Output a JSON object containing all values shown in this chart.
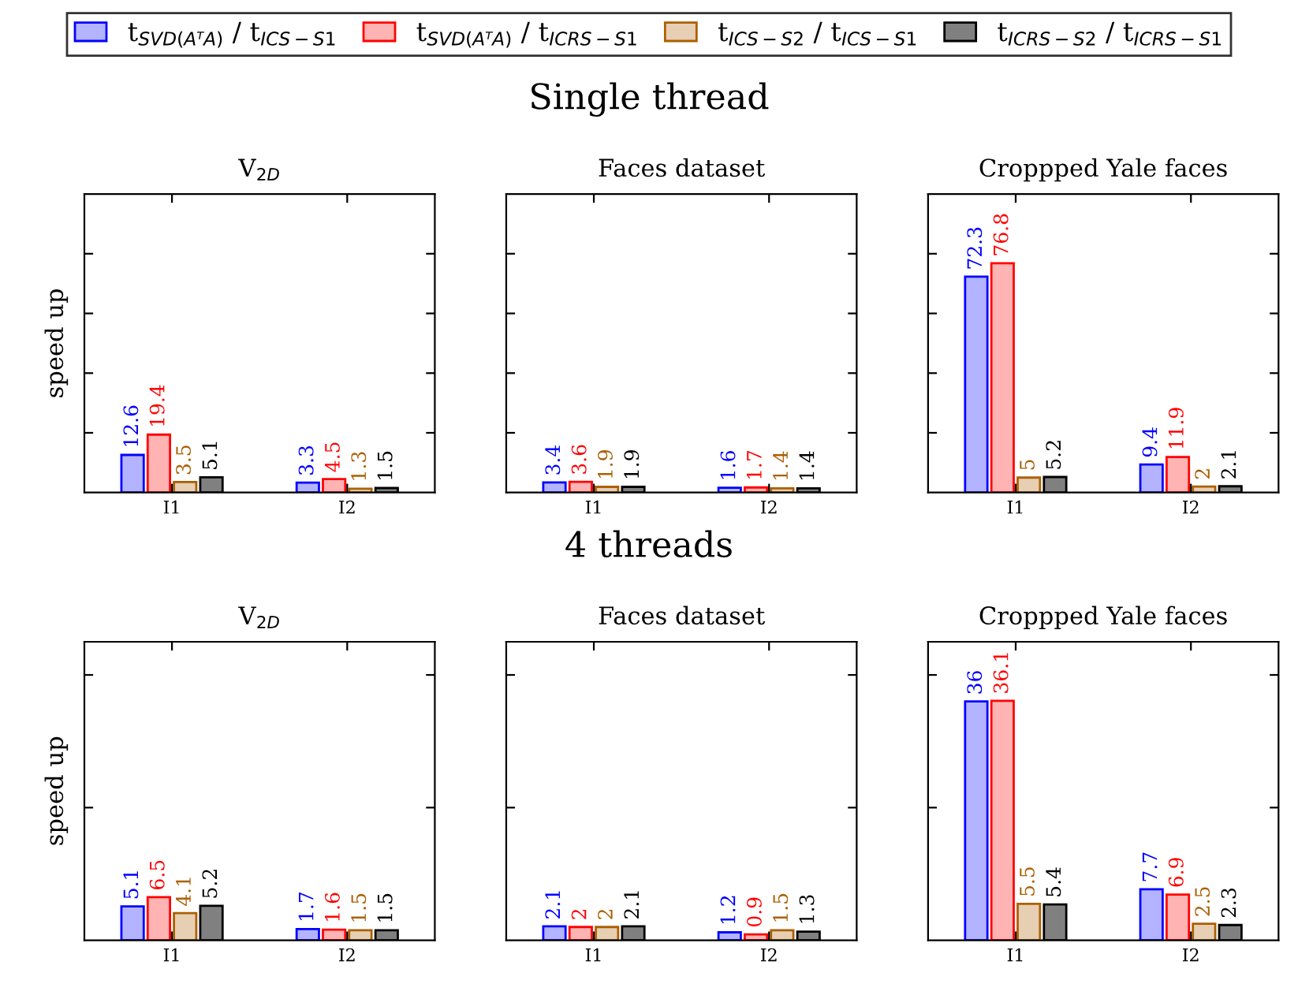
{
  "chart_data": [
    {
      "type": "bar",
      "title": "V$_{2D}$",
      "ylabel": "speed up",
      "annotations": [
        "Single thread"
      ],
      "categories": [
        "I1",
        "I2"
      ],
      "legend": "top",
      "data_labels": true,
      "grid": false,
      "ylim": [
        0,
        100
      ],
      "yticks": [
        {
          "value": 20,
          "label": null
        },
        {
          "value": 40,
          "label": null
        },
        {
          "value": 60,
          "label": null
        },
        {
          "value": 80,
          "label": null
        }
      ],
      "series": [
        {
          "name": "t$_{SVD(AᵀA)}$ / t$_{ICS−S1}$",
          "color": "#b3b3ff",
          "values": [
            12.6,
            3.3
          ]
        },
        {
          "name": "t$_{SVD(AᵀA)}$ / t$_{ICRS−S1}$",
          "color": "#ffb3b3",
          "values": [
            19.4,
            4.5
          ]
        },
        {
          "name": "t$_{ICS−S2}$ / t$_{ICS−S1}$",
          "color": "#e6cfb3",
          "values": [
            3.5,
            1.3
          ]
        },
        {
          "name": "t$_{ICRS−S2}$ / t$_{ICRS−S1}$",
          "color": "#808080",
          "values": [
            5.1,
            1.5
          ]
        }
      ]
    },
    {
      "type": "bar",
      "title": "Faces dataset",
      "categories": [
        "I1",
        "I2"
      ],
      "data_labels": true,
      "grid": false,
      "ylim": [
        0,
        100
      ],
      "yticks": [
        {
          "value": 20,
          "label": null
        },
        {
          "value": 40,
          "label": null
        },
        {
          "value": 60,
          "label": null
        },
        {
          "value": 80,
          "label": null
        }
      ],
      "series": [
        {
          "color": "#b3b3ff",
          "values": [
            3.4,
            1.6
          ]
        },
        {
          "color": "#ffb3b3",
          "values": [
            3.6,
            1.7
          ]
        },
        {
          "color": "#e6cfb3",
          "values": [
            1.9,
            1.4
          ]
        },
        {
          "color": "#808080",
          "values": [
            1.9,
            1.4
          ]
        }
      ]
    },
    {
      "type": "bar",
      "title": "Croppped Yale faces",
      "categories": [
        "I1",
        "I2"
      ],
      "data_labels": true,
      "grid": false,
      "ylim": [
        0,
        100
      ],
      "yticks": [
        {
          "value": 20,
          "label": null
        },
        {
          "value": 40,
          "label": null
        },
        {
          "value": 60,
          "label": null
        },
        {
          "value": 80,
          "label": null
        }
      ],
      "series": [
        {
          "color": "#b3b3ff",
          "values": [
            72.3,
            9.4
          ]
        },
        {
          "color": "#ffb3b3",
          "values": [
            76.8,
            11.9
          ]
        },
        {
          "color": "#e6cfb3",
          "values": [
            5,
            2
          ]
        },
        {
          "color": "#808080",
          "values": [
            5.2,
            2.1
          ]
        }
      ]
    },
    {
      "type": "bar",
      "title": "V$_{2D}$",
      "ylabel": "speed up",
      "annotations": [
        "4 threads"
      ],
      "categories": [
        "I1",
        "I2"
      ],
      "data_labels": true,
      "grid": false,
      "ylim": [
        0,
        45
      ],
      "yticks": [
        {
          "value": 20,
          "label": null
        },
        {
          "value": 40,
          "label": null
        }
      ],
      "series": [
        {
          "color": "#b3b3ff",
          "values": [
            5.1,
            1.7
          ]
        },
        {
          "color": "#ffb3b3",
          "values": [
            6.5,
            1.6
          ]
        },
        {
          "color": "#e6cfb3",
          "values": [
            4.1,
            1.5
          ]
        },
        {
          "color": "#808080",
          "values": [
            5.2,
            1.5
          ]
        }
      ]
    },
    {
      "type": "bar",
      "title": "Faces dataset",
      "categories": [
        "I1",
        "I2"
      ],
      "data_labels": true,
      "grid": false,
      "ylim": [
        0,
        45
      ],
      "yticks": [
        {
          "value": 20,
          "label": null
        },
        {
          "value": 40,
          "label": null
        }
      ],
      "series": [
        {
          "color": "#b3b3ff",
          "values": [
            2.1,
            1.2
          ]
        },
        {
          "color": "#ffb3b3",
          "values": [
            2,
            0.9
          ]
        },
        {
          "color": "#e6cfb3",
          "values": [
            2,
            1.5
          ]
        },
        {
          "color": "#808080",
          "values": [
            2.1,
            1.3
          ]
        }
      ]
    },
    {
      "type": "bar",
      "title": "Croppped Yale faces",
      "categories": [
        "I1",
        "I2"
      ],
      "data_labels": true,
      "grid": false,
      "ylim": [
        0,
        45
      ],
      "yticks": [
        {
          "value": 20,
          "label": null
        },
        {
          "value": 40,
          "label": null
        }
      ],
      "series": [
        {
          "color": "#b3b3ff",
          "values": [
            36,
            7.7
          ]
        },
        {
          "color": "#ffb3b3",
          "values": [
            36.1,
            6.9
          ]
        },
        {
          "color": "#e6cfb3",
          "values": [
            5.5,
            2.5
          ]
        },
        {
          "color": "#808080",
          "values": [
            5.4,
            2.3
          ]
        }
      ]
    }
  ]
}
